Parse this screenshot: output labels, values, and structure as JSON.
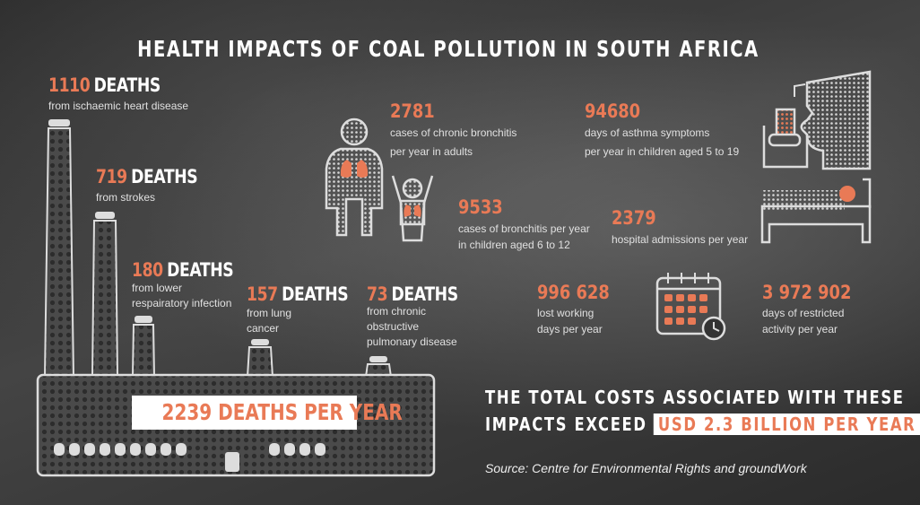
{
  "title": "HEALTH IMPACTS OF COAL POLLUTION IN SOUTH AFRICA",
  "colors": {
    "accent": "#e97a56",
    "text": "#ffffff",
    "background": "#333333"
  },
  "deaths": [
    {
      "number": "1110",
      "word": "DEATHS",
      "desc": "from ischaemic heart disease"
    },
    {
      "number": "719",
      "word": "DEATHS",
      "desc": "from strokes"
    },
    {
      "number": "180",
      "word": "DEATHS",
      "desc_line1": "from lower",
      "desc_line2": "respairatory infection"
    },
    {
      "number": "157",
      "word": "DEATHS",
      "desc_line1": "from lung",
      "desc_line2": "cancer"
    },
    {
      "number": "73",
      "word": "DEATHS",
      "desc_line1": "from chronic",
      "desc_line2": "obstructive",
      "desc_line3": "pulmonary disease"
    }
  ],
  "total_deaths": "2239 DEATHS PER YEAR",
  "stats": [
    {
      "number": "2781",
      "line1": "cases of chronic bronchitis",
      "line2": "per year in adults"
    },
    {
      "number": "94680",
      "line1": "days of asthma symptoms",
      "line2": "per year in children aged 5 to 19"
    },
    {
      "number": "9533",
      "line1": "cases of bronchitis per year",
      "line2": "in children aged 6 to 12"
    },
    {
      "number": "2379",
      "line1": "hospital admissions per year"
    },
    {
      "number": "996 628",
      "line1": "lost working",
      "line2": "days per year"
    },
    {
      "number": "3 972 902",
      "line1": "days of restricted",
      "line2": "activity per year"
    }
  ],
  "total_costs": {
    "line1": "THE TOTAL COSTS ASSOCIATED WITH THESE",
    "line2": "IMPACTS EXCEED",
    "highlight": "USD 2.3 BILLION PER YEAR"
  },
  "source": "Source: Centre for Environmental Rights and groundWork",
  "icons": [
    "factory-illustration",
    "family-lungs-icon",
    "asthma-face-icon",
    "hospital-bed-icon",
    "calendar-clock-icon"
  ]
}
